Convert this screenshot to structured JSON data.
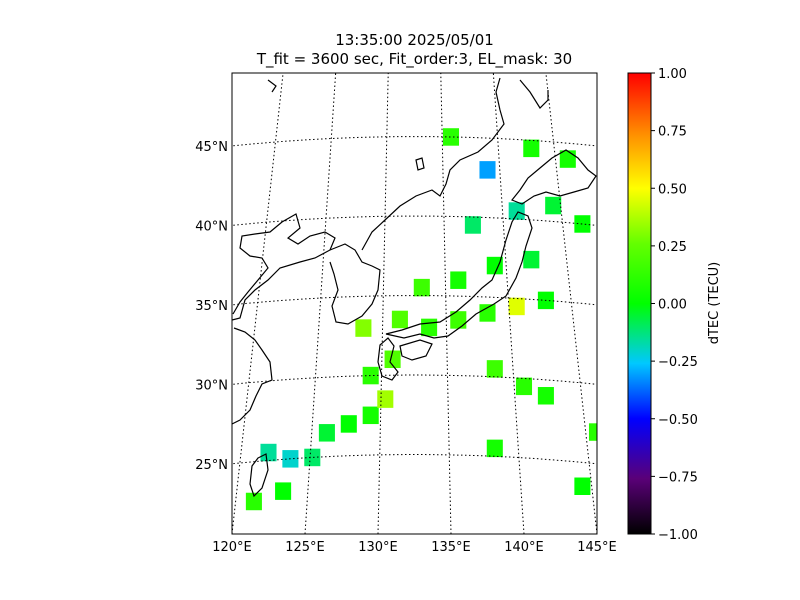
{
  "chart_data": {
    "type": "heatmap",
    "title": "13:35:00 2025/05/01",
    "subtitle": "T_fit = 3600 sec, Fit_order:3, EL_mask: 30",
    "colorbar": {
      "label": "dTEC (TECU)",
      "range": [
        -1.0,
        1.0
      ],
      "ticks": [
        "1.00",
        "0.75",
        "0.50",
        "0.25",
        "0.00",
        "−0.25",
        "−0.50",
        "−0.75",
        "−1.00"
      ],
      "tick_values": [
        1.0,
        0.75,
        0.5,
        0.25,
        0.0,
        -0.25,
        -0.5,
        -0.75,
        -1.0
      ]
    },
    "lon_ticks": [
      "120°E",
      "125°E",
      "130°E",
      "135°E",
      "140°E",
      "145°E"
    ],
    "lon_values": [
      120,
      125,
      130,
      135,
      140,
      145
    ],
    "lat_ticks": [
      "45°N",
      "40°N",
      "35°N",
      "30°N",
      "25°N"
    ],
    "lat_values": [
      45,
      40,
      35,
      30,
      25
    ],
    "xlim": [
      120,
      145
    ],
    "ylim": [
      20,
      49
    ],
    "grid": true,
    "regions": [
      {
        "lon": 121.5,
        "lat": 22.5,
        "dtec": 0.1
      },
      {
        "lon": 123.5,
        "lat": 23.0,
        "dtec": 0.0
      },
      {
        "lon": 122.5,
        "lat": 25.5,
        "dtec": -0.15
      },
      {
        "lon": 124.0,
        "lat": 25.0,
        "dtec": -0.2
      },
      {
        "lon": 125.5,
        "lat": 25.0,
        "dtec": -0.1
      },
      {
        "lon": 126.5,
        "lat": 26.5,
        "dtec": -0.05
      },
      {
        "lon": 128.0,
        "lat": 27.0,
        "dtec": 0.0
      },
      {
        "lon": 129.5,
        "lat": 27.5,
        "dtec": 0.05
      },
      {
        "lon": 130.5,
        "lat": 28.5,
        "dtec": 0.35
      },
      {
        "lon": 129.5,
        "lat": 30.0,
        "dtec": 0.1
      },
      {
        "lon": 131.0,
        "lat": 31.0,
        "dtec": 0.2
      },
      {
        "lon": 129.0,
        "lat": 33.0,
        "dtec": 0.3
      },
      {
        "lon": 131.5,
        "lat": 33.5,
        "dtec": 0.2
      },
      {
        "lon": 133.5,
        "lat": 33.0,
        "dtec": 0.1
      },
      {
        "lon": 135.5,
        "lat": 33.5,
        "dtec": 0.15
      },
      {
        "lon": 137.5,
        "lat": 34.0,
        "dtec": 0.1
      },
      {
        "lon": 139.5,
        "lat": 34.5,
        "dtec": 0.45
      },
      {
        "lon": 141.5,
        "lat": 35.0,
        "dtec": 0.0
      },
      {
        "lon": 133.0,
        "lat": 35.5,
        "dtec": 0.15
      },
      {
        "lon": 135.5,
        "lat": 36.0,
        "dtec": 0.05
      },
      {
        "lon": 138.0,
        "lat": 37.0,
        "dtec": 0.0
      },
      {
        "lon": 140.5,
        "lat": 37.5,
        "dtec": -0.05
      },
      {
        "lon": 136.5,
        "lat": 39.5,
        "dtec": -0.1
      },
      {
        "lon": 139.5,
        "lat": 40.5,
        "dtec": -0.15
      },
      {
        "lon": 142.0,
        "lat": 41.0,
        "dtec": -0.05
      },
      {
        "lon": 137.5,
        "lat": 43.0,
        "dtec": -0.3
      },
      {
        "lon": 140.5,
        "lat": 44.5,
        "dtec": 0.05
      },
      {
        "lon": 143.0,
        "lat": 44.0,
        "dtec": 0.05
      },
      {
        "lon": 135.0,
        "lat": 45.0,
        "dtec": 0.1
      },
      {
        "lon": 144.0,
        "lat": 40.0,
        "dtec": 0.0
      },
      {
        "lon": 138.0,
        "lat": 30.5,
        "dtec": 0.15
      },
      {
        "lon": 140.0,
        "lat": 29.5,
        "dtec": 0.1
      },
      {
        "lon": 141.5,
        "lat": 29.0,
        "dtec": 0.05
      },
      {
        "lon": 138.0,
        "lat": 25.5,
        "dtec": 0.05
      },
      {
        "lon": 144.0,
        "lat": 23.5,
        "dtec": 0.0
      },
      {
        "lon": 145.0,
        "lat": 27.0,
        "dtec": 0.1
      }
    ]
  }
}
